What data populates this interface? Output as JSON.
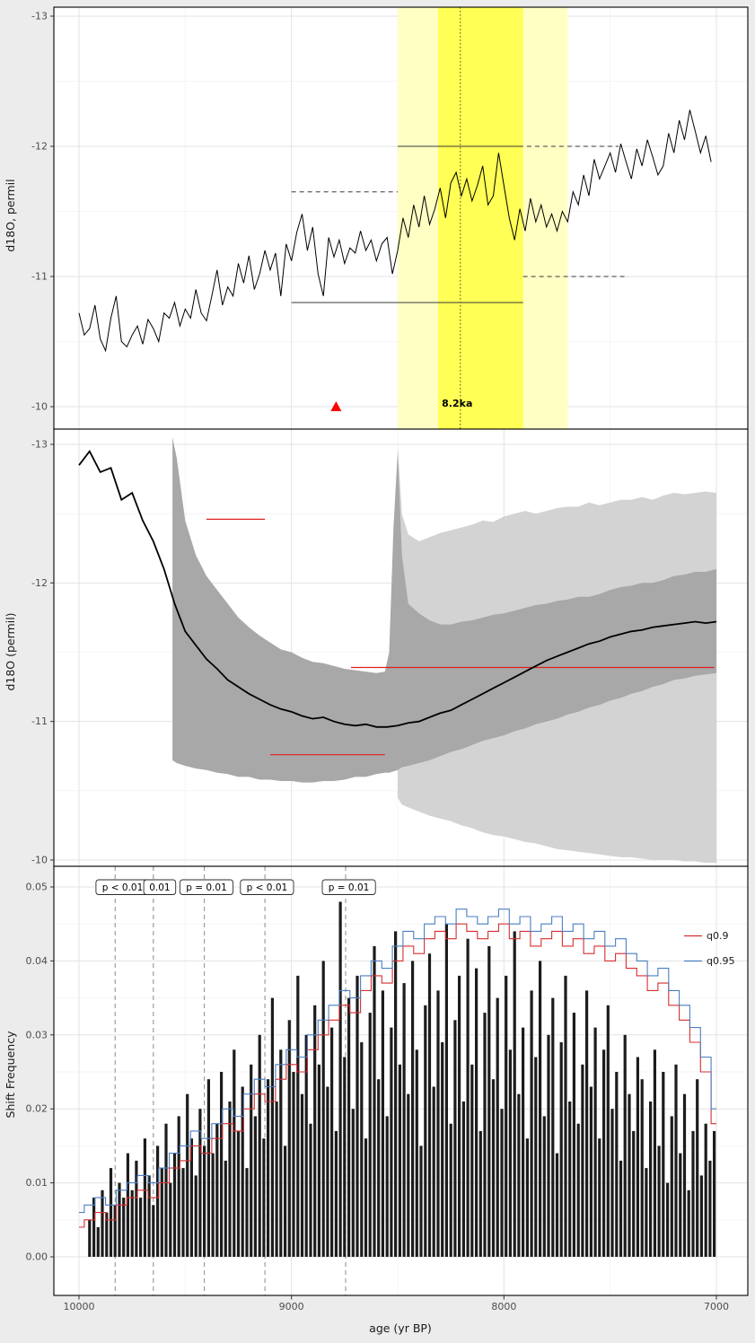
{
  "page": {
    "background": "#ececec",
    "panel_background": "#ffffff",
    "panel_border": "#000000",
    "grid_major": "#e3e3e3",
    "grid_minor": "#f3f3f3",
    "tick_color": "#333333",
    "tick_label_color": "#4d4d4d"
  },
  "axes": {
    "x": {
      "tick_values": [
        10000,
        9000,
        8000,
        7000
      ],
      "tick_labels": [
        "10000",
        "9000",
        "8000",
        "7000"
      ],
      "minor_ticks": [
        9500,
        8500,
        7500
      ]
    }
  },
  "chart_data": [
    {
      "type": "line",
      "ylabel": "d18O, permil",
      "ylim": [
        -13,
        -10
      ],
      "y_reversed": true,
      "ytick_values": [
        -13,
        -12,
        -11,
        -10
      ],
      "ytick_labels": [
        "-13",
        "-12",
        "-11",
        "-10"
      ],
      "series": {
        "name": "d18O record",
        "color": "#000000",
        "age_start": 10000,
        "age_step": -25,
        "values": [
          -10.72,
          -10.55,
          -10.6,
          -10.78,
          -10.52,
          -10.43,
          -10.68,
          -10.85,
          -10.5,
          -10.46,
          -10.55,
          -10.62,
          -10.48,
          -10.67,
          -10.6,
          -10.5,
          -10.72,
          -10.68,
          -10.8,
          -10.62,
          -10.75,
          -10.68,
          -10.9,
          -10.72,
          -10.66,
          -10.85,
          -11.05,
          -10.78,
          -10.92,
          -10.85,
          -11.1,
          -10.95,
          -11.16,
          -10.9,
          -11.02,
          -11.2,
          -11.05,
          -11.18,
          -10.85,
          -11.25,
          -11.12,
          -11.34,
          -11.48,
          -11.2,
          -11.38,
          -11.02,
          -10.85,
          -11.3,
          -11.15,
          -11.28,
          -11.1,
          -11.22,
          -11.18,
          -11.35,
          -11.2,
          -11.28,
          -11.12,
          -11.25,
          -11.3,
          -11.02,
          -11.2,
          -11.45,
          -11.3,
          -11.55,
          -11.38,
          -11.62,
          -11.4,
          -11.52,
          -11.68,
          -11.45,
          -11.72,
          -11.8,
          -11.62,
          -11.75,
          -11.58,
          -11.7,
          -11.85,
          -11.55,
          -11.62,
          -11.95,
          -11.7,
          -11.45,
          -11.28,
          -11.52,
          -11.35,
          -11.6,
          -11.42,
          -11.55,
          -11.38,
          -11.48,
          -11.35,
          -11.5,
          -11.42,
          -11.65,
          -11.55,
          -11.78,
          -11.62,
          -11.9,
          -11.75,
          -11.85,
          -11.95,
          -11.8,
          -12.02,
          -11.88,
          -11.75,
          -11.98,
          -11.85,
          -12.05,
          -11.92,
          -11.78,
          -11.85,
          -12.1,
          -11.95,
          -12.2,
          -12.05,
          -12.28,
          -12.12,
          -11.95,
          -12.08,
          -11.88
        ]
      },
      "event_bands": [
        {
          "x1": 8500,
          "x2": 7700,
          "color": "#ffffc4"
        },
        {
          "x1": 8310,
          "x2": 7910,
          "color": "#ffff55"
        }
      ],
      "event_line": {
        "x": 8205,
        "style": "dotted",
        "label": "8.2ka",
        "label_x": 8220,
        "label_y": -10.02
      },
      "marker": {
        "shape": "triangle-up",
        "x": 8790,
        "y": -10.0,
        "color": "#ff0000"
      },
      "mean_segments": [
        {
          "x1": 9000,
          "x2": 8500,
          "y": -11.65,
          "style": "dashed"
        },
        {
          "x1": 8500,
          "x2": 7930,
          "y": -12.0,
          "style": "solid"
        },
        {
          "x1": 7930,
          "x2": 7460,
          "y": -12.0,
          "style": "dashed"
        },
        {
          "x1": 9000,
          "x2": 7910,
          "y": -10.8,
          "style": "solid"
        },
        {
          "x1": 7910,
          "x2": 7415,
          "y": -11.0,
          "style": "dashed"
        }
      ],
      "segment_color": "#3a3a3a"
    },
    {
      "type": "line-with-bands",
      "ylabel": "d18O (permil)",
      "ylim": [
        -13,
        -10
      ],
      "y_reversed": true,
      "ytick_values": [
        -13,
        -12,
        -11,
        -10
      ],
      "ytick_labels": [
        "-13",
        "-12",
        "-11",
        "-10"
      ],
      "mean_line": {
        "name": "running mean",
        "color": "#000000",
        "age_start": 10000,
        "age_step": -50,
        "values": [
          -12.85,
          -12.95,
          -12.8,
          -12.83,
          -12.6,
          -12.65,
          -12.45,
          -12.3,
          -12.1,
          -11.85,
          -11.65,
          -11.55,
          -11.45,
          -11.38,
          -11.3,
          -11.25,
          -11.2,
          -11.16,
          -11.12,
          -11.09,
          -11.07,
          -11.04,
          -11.02,
          -11.03,
          -11.0,
          -10.98,
          -10.97,
          -10.98,
          -10.96,
          -10.96,
          -10.97,
          -10.99,
          -11.0,
          -11.03,
          -11.06,
          -11.08,
          -11.12,
          -11.16,
          -11.2,
          -11.24,
          -11.28,
          -11.32,
          -11.36,
          -11.4,
          -11.44,
          -11.47,
          -11.5,
          -11.53,
          -11.56,
          -11.58,
          -11.61,
          -11.63,
          -11.65,
          -11.66,
          -11.68,
          -11.69,
          -11.7,
          -11.71,
          -11.72,
          -11.71,
          -11.72
        ]
      },
      "band_outer": {
        "color": "#d3d3d3",
        "x": [
          8500,
          8480,
          8450,
          8400,
          8350,
          8300,
          8250,
          8200,
          8150,
          8100,
          8050,
          8000,
          7950,
          7900,
          7850,
          7800,
          7750,
          7700,
          7650,
          7600,
          7550,
          7500,
          7450,
          7400,
          7350,
          7300,
          7250,
          7200,
          7150,
          7100,
          7050,
          7000
        ],
        "upper": [
          -13.0,
          -12.5,
          -12.35,
          -12.3,
          -12.33,
          -12.36,
          -12.38,
          -12.4,
          -12.42,
          -12.45,
          -12.44,
          -12.48,
          -12.5,
          -12.52,
          -12.5,
          -12.52,
          -12.54,
          -12.55,
          -12.55,
          -12.58,
          -12.56,
          -12.58,
          -12.6,
          -12.6,
          -12.62,
          -12.6,
          -12.63,
          -12.65,
          -12.64,
          -12.65,
          -12.66,
          -12.65
        ],
        "lower": [
          -10.45,
          -10.4,
          -10.38,
          -10.35,
          -10.32,
          -10.3,
          -10.28,
          -10.25,
          -10.23,
          -10.2,
          -10.18,
          -10.17,
          -10.15,
          -10.13,
          -10.12,
          -10.1,
          -10.08,
          -10.07,
          -10.06,
          -10.05,
          -10.04,
          -10.03,
          -10.02,
          -10.02,
          -10.01,
          -10.0,
          -10.0,
          -10.0,
          -9.99,
          -9.99,
          -9.98,
          -9.98
        ]
      },
      "band_inner": {
        "color": "#a8a8a8",
        "x": [
          9560,
          9540,
          9500,
          9450,
          9400,
          9350,
          9300,
          9250,
          9200,
          9150,
          9100,
          9050,
          9000,
          8950,
          8900,
          8850,
          8800,
          8750,
          8700,
          8650,
          8600,
          8560,
          8540,
          8520,
          8500,
          8480,
          8450,
          8400,
          8350,
          8300,
          8250,
          8200,
          8150,
          8100,
          8050,
          8000,
          7950,
          7900,
          7850,
          7800,
          7750,
          7700,
          7650,
          7600,
          7550,
          7500,
          7450,
          7400,
          7350,
          7300,
          7250,
          7200,
          7150,
          7100,
          7050,
          7000
        ],
        "upper": [
          -13.05,
          -12.9,
          -12.45,
          -12.2,
          -12.05,
          -11.95,
          -11.85,
          -11.75,
          -11.68,
          -11.62,
          -11.57,
          -11.52,
          -11.5,
          -11.46,
          -11.43,
          -11.42,
          -11.4,
          -11.38,
          -11.37,
          -11.36,
          -11.35,
          -11.36,
          -11.5,
          -12.4,
          -12.95,
          -12.2,
          -11.85,
          -11.78,
          -11.73,
          -11.7,
          -11.7,
          -11.72,
          -11.73,
          -11.75,
          -11.77,
          -11.78,
          -11.8,
          -11.82,
          -11.84,
          -11.85,
          -11.87,
          -11.88,
          -11.9,
          -11.9,
          -11.92,
          -11.95,
          -11.97,
          -11.98,
          -12.0,
          -12.0,
          -12.02,
          -12.05,
          -12.06,
          -12.08,
          -12.08,
          -12.1
        ],
        "lower": [
          -10.72,
          -10.7,
          -10.68,
          -10.66,
          -10.65,
          -10.63,
          -10.62,
          -10.6,
          -10.6,
          -10.58,
          -10.58,
          -10.57,
          -10.57,
          -10.56,
          -10.56,
          -10.57,
          -10.57,
          -10.58,
          -10.6,
          -10.6,
          -10.62,
          -10.63,
          -10.63,
          -10.64,
          -10.65,
          -10.67,
          -10.68,
          -10.7,
          -10.72,
          -10.75,
          -10.78,
          -10.8,
          -10.83,
          -10.86,
          -10.88,
          -10.9,
          -10.93,
          -10.95,
          -10.98,
          -11.0,
          -11.02,
          -11.05,
          -11.07,
          -11.1,
          -11.12,
          -11.15,
          -11.17,
          -11.2,
          -11.22,
          -11.25,
          -11.27,
          -11.3,
          -11.31,
          -11.33,
          -11.34,
          -11.35
        ]
      },
      "red_segments": [
        {
          "x1": 9400,
          "x2": 9125,
          "y": -12.46
        },
        {
          "x1": 9100,
          "x2": 8560,
          "y": -10.76
        },
        {
          "x1": 8720,
          "x2": 7010,
          "y": -11.39
        }
      ],
      "red_segment_color": "#e02020"
    },
    {
      "type": "bar-with-step-lines",
      "ylabel": "Shift Frequency",
      "xlabel": "age (yr BP)",
      "ylim": [
        0,
        0.05
      ],
      "ytick_values": [
        0,
        0.01,
        0.02,
        0.03,
        0.04,
        0.05
      ],
      "ytick_labels": [
        "0.00",
        "0.01",
        "0.02",
        "0.03",
        "0.04",
        "0.05"
      ],
      "bars": {
        "name": "shift frequency",
        "color": "#1c1c1c",
        "age_start": 9950,
        "age_step": -20,
        "value_scale": 0.001,
        "values": [
          5,
          8,
          4,
          9,
          6,
          12,
          7,
          10,
          8,
          14,
          9,
          13,
          8,
          16,
          11,
          7,
          15,
          12,
          18,
          10,
          14,
          19,
          12,
          22,
          16,
          11,
          20,
          15,
          24,
          14,
          18,
          25,
          13,
          21,
          28,
          17,
          23,
          12,
          26,
          19,
          30,
          16,
          24,
          35,
          21,
          28,
          15,
          32,
          25,
          38,
          22,
          30,
          18,
          34,
          26,
          40,
          23,
          31,
          17,
          48,
          27,
          35,
          20,
          38,
          29,
          16,
          33,
          42,
          24,
          36,
          19,
          31,
          44,
          26,
          37,
          22,
          40,
          28,
          15,
          34,
          41,
          23,
          36,
          29,
          45,
          18,
          32,
          38,
          21,
          43,
          26,
          39,
          17,
          33,
          42,
          24,
          35,
          20,
          38,
          28,
          44,
          22,
          31,
          16,
          36,
          27,
          40,
          19,
          30,
          35,
          14,
          29,
          38,
          21,
          33,
          18,
          26,
          36,
          23,
          31,
          16,
          28,
          34,
          20,
          25,
          13,
          30,
          22,
          17,
          27,
          24,
          12,
          21,
          28,
          15,
          25,
          10,
          19,
          26,
          14,
          22,
          9,
          17,
          24,
          11,
          18,
          13,
          17
        ]
      },
      "quantile_lines": [
        {
          "name": "q0.9",
          "color": "#d62f2f",
          "age_start": 10000,
          "age_step": -50,
          "value_scale": 0.001,
          "values": [
            4,
            5,
            6,
            5,
            7,
            8,
            9,
            8,
            10,
            12,
            13,
            15,
            14,
            16,
            18,
            17,
            20,
            22,
            21,
            24,
            26,
            25,
            28,
            30,
            32,
            34,
            33,
            36,
            38,
            37,
            40,
            42,
            41,
            43,
            44,
            43,
            45,
            44,
            43,
            44,
            45,
            43,
            44,
            42,
            43,
            44,
            42,
            43,
            41,
            42,
            40,
            41,
            39,
            38,
            36,
            37,
            34,
            32,
            29,
            25,
            18
          ]
        },
        {
          "name": "q0.95",
          "color": "#4a7fc1",
          "age_start": 10000,
          "age_step": -50,
          "value_scale": 0.001,
          "values": [
            6,
            7,
            8,
            7,
            9,
            10,
            11,
            10,
            12,
            14,
            15,
            17,
            16,
            18,
            20,
            19,
            22,
            24,
            23,
            26,
            28,
            27,
            30,
            32,
            34,
            36,
            35,
            38,
            40,
            39,
            42,
            44,
            43,
            45,
            46,
            45,
            47,
            46,
            45,
            46,
            47,
            45,
            46,
            44,
            45,
            46,
            44,
            45,
            43,
            44,
            42,
            43,
            41,
            40,
            38,
            39,
            36,
            34,
            31,
            27,
            20
          ]
        }
      ],
      "significance_vlines": [
        9830,
        9650,
        9410,
        9125,
        8745
      ],
      "significance_labels": [
        {
          "text": "p < 0.01",
          "x": 9795
        },
        {
          "text": "0.01",
          "x": 9620
        },
        {
          "text": "p = 0.01",
          "x": 9400
        },
        {
          "text": "p < 0.01",
          "x": 9115
        },
        {
          "text": "p = 0.01",
          "x": 8730
        }
      ],
      "legend": {
        "entries": [
          {
            "label": "q0.9",
            "color": "#d62f2f"
          },
          {
            "label": "q0.95",
            "color": "#4a7fc1"
          }
        ]
      }
    }
  ]
}
